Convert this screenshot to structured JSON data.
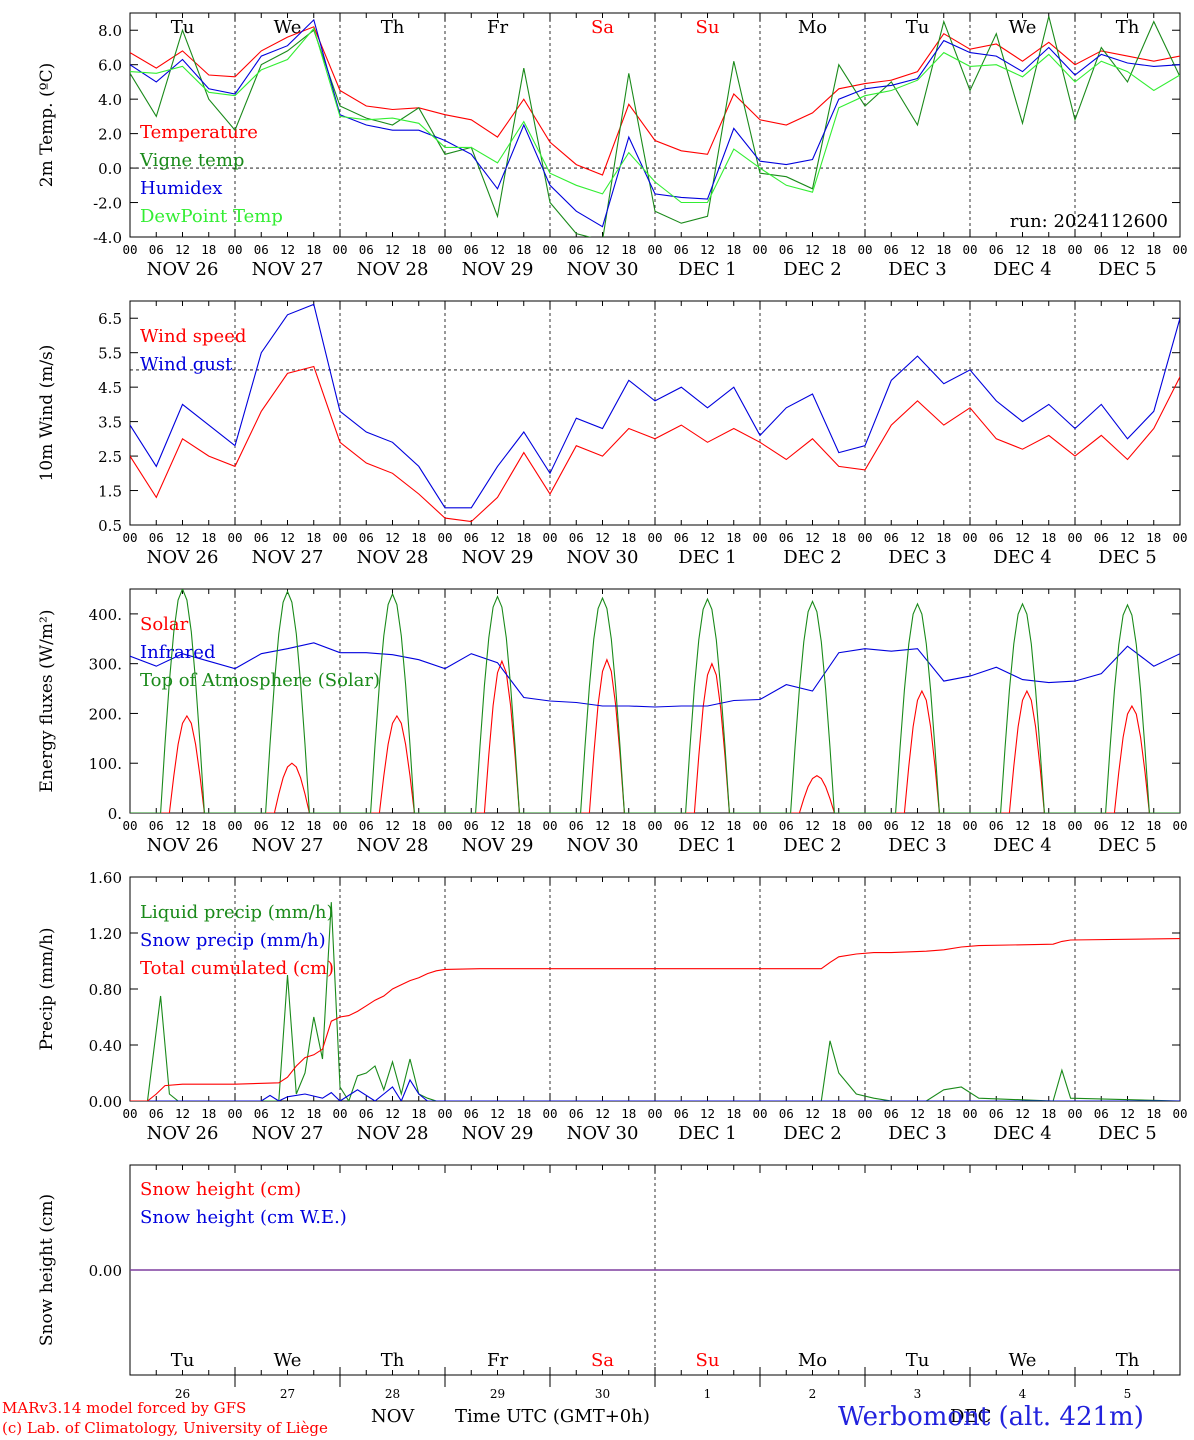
{
  "colors": {
    "red": "#ff0000",
    "green": "#1a8a1a",
    "blue": "#0000dd",
    "lightgreen": "#33ee33",
    "purple": "#7f3f9f"
  },
  "days_of_week": [
    {
      "label": "Tu",
      "color": "#000000"
    },
    {
      "label": "We",
      "color": "#000000"
    },
    {
      "label": "Th",
      "color": "#000000"
    },
    {
      "label": "Fr",
      "color": "#000000"
    },
    {
      "label": "Sa",
      "color": "#ff0000"
    },
    {
      "label": "Su",
      "color": "#ff0000"
    },
    {
      "label": "Mo",
      "color": "#000000"
    },
    {
      "label": "Tu",
      "color": "#000000"
    },
    {
      "label": "We",
      "color": "#000000"
    },
    {
      "label": "Th",
      "color": "#000000"
    }
  ],
  "date_labels": [
    "NOV 26",
    "NOV 27",
    "NOV 28",
    "NOV 29",
    "NOV 30",
    "DEC  1",
    "DEC  2",
    "DEC  3",
    "DEC  4",
    "DEC  5"
  ],
  "hour_labels": [
    "00",
    "06",
    "12",
    "18"
  ],
  "day_numbers": [
    "26",
    "27",
    "28",
    "29",
    "30",
    "1",
    "2",
    "3",
    "4",
    "5"
  ],
  "footer": {
    "model_line1": "MARv3.14 model forced by GFS",
    "model_line2": "(c) Lab. of Climatology, University of Liège",
    "month_nov": "NOV",
    "month_dec": "DEC",
    "time_axis": "Time UTC (GMT+0h)",
    "station": "Werbomont (alt. 421m)"
  },
  "chart_data": [
    {
      "id": "temperature",
      "type": "line",
      "ylabel": "2m Temp. (ºC)",
      "ylim": [
        -4,
        9
      ],
      "yticks": [
        "-4.0",
        "-2.0",
        "0.0",
        "2.0",
        "4.0",
        "6.0",
        "8.0"
      ],
      "ytick_values": [
        -4,
        -2,
        0,
        2,
        4,
        6,
        8
      ],
      "reference_line": 0,
      "annotation": "run: 2024112600",
      "x_unit": "hours since 2024-11-26 00 UTC",
      "series": [
        {
          "name": "Temperature",
          "color": "#ff0000",
          "x": [
            0,
            6,
            12,
            18,
            24,
            30,
            36,
            42,
            48,
            54,
            60,
            66,
            72,
            78,
            84,
            90,
            96,
            102,
            108,
            114,
            120,
            126,
            132,
            138,
            144,
            150,
            156,
            162,
            168,
            174,
            180,
            186,
            192,
            198,
            204,
            210,
            216,
            222,
            228,
            234,
            240
          ],
          "y": [
            6.7,
            5.8,
            6.8,
            5.4,
            5.3,
            6.8,
            7.6,
            8.2,
            4.5,
            3.6,
            3.4,
            3.5,
            3.1,
            2.8,
            1.8,
            4.0,
            1.5,
            0.2,
            -0.4,
            3.7,
            1.6,
            1.0,
            0.8,
            4.3,
            2.8,
            2.5,
            3.2,
            4.6,
            4.9,
            5.1,
            5.6,
            7.8,
            6.9,
            7.2,
            6.2,
            7.3,
            6.0,
            6.8,
            6.5,
            6.2,
            6.5
          ]
        },
        {
          "name": "Vigne temp",
          "color": "#1a8a1a",
          "x": [
            0,
            6,
            12,
            18,
            24,
            30,
            36,
            42,
            48,
            54,
            60,
            66,
            72,
            78,
            84,
            90,
            96,
            102,
            108,
            114,
            120,
            126,
            132,
            138,
            144,
            150,
            156,
            162,
            168,
            174,
            180,
            186,
            192,
            198,
            204,
            210,
            216,
            222,
            228,
            234,
            240
          ],
          "y": [
            5.5,
            3.0,
            8.0,
            4.0,
            2.2,
            6.0,
            6.8,
            8.0,
            3.6,
            2.9,
            2.5,
            3.5,
            0.8,
            1.2,
            -2.8,
            5.8,
            -2.0,
            -3.8,
            -4.2,
            5.5,
            -2.5,
            -3.2,
            -2.8,
            6.2,
            -0.3,
            -0.5,
            -1.2,
            6.0,
            3.6,
            5.0,
            2.5,
            8.5,
            4.5,
            7.8,
            2.6,
            8.8,
            2.8,
            7.0,
            5.0,
            8.5,
            5.3
          ]
        },
        {
          "name": "Humidex",
          "color": "#0000dd",
          "x": [
            0,
            6,
            12,
            18,
            24,
            30,
            36,
            42,
            48,
            54,
            60,
            66,
            72,
            78,
            84,
            90,
            96,
            102,
            108,
            114,
            120,
            126,
            132,
            138,
            144,
            150,
            156,
            162,
            168,
            174,
            180,
            186,
            192,
            198,
            204,
            210,
            216,
            222,
            228,
            234,
            240
          ],
          "y": [
            6.0,
            5.0,
            6.3,
            4.6,
            4.3,
            6.5,
            7.1,
            8.6,
            3.1,
            2.5,
            2.2,
            2.2,
            1.6,
            0.8,
            -1.2,
            2.5,
            -1.0,
            -2.5,
            -3.4,
            1.8,
            -1.5,
            -1.7,
            -1.8,
            2.3,
            0.4,
            0.2,
            0.5,
            4.0,
            4.6,
            4.8,
            5.2,
            7.4,
            6.7,
            6.5,
            5.6,
            7.0,
            5.4,
            6.6,
            6.1,
            5.9,
            6.0
          ]
        },
        {
          "name": "DewPoint Temp",
          "color": "#33ee33",
          "x": [
            0,
            6,
            12,
            18,
            24,
            30,
            36,
            42,
            48,
            54,
            60,
            66,
            72,
            78,
            84,
            90,
            96,
            102,
            108,
            114,
            120,
            126,
            132,
            138,
            144,
            150,
            156,
            162,
            168,
            174,
            180,
            186,
            192,
            198,
            204,
            210,
            216,
            222,
            228,
            234,
            240
          ],
          "y": [
            5.6,
            5.5,
            5.9,
            4.4,
            4.2,
            5.7,
            6.3,
            8.1,
            3.0,
            2.8,
            2.9,
            2.6,
            1.2,
            1.2,
            0.3,
            2.7,
            -0.3,
            -1.0,
            -1.5,
            0.9,
            -0.8,
            -2.0,
            -2.0,
            1.1,
            0.0,
            -1.0,
            -1.4,
            3.5,
            4.2,
            4.5,
            5.1,
            6.7,
            5.9,
            6.0,
            5.3,
            6.6,
            5.0,
            6.2,
            5.6,
            4.5,
            5.4
          ]
        }
      ]
    },
    {
      "id": "wind",
      "type": "line",
      "ylabel": "10m Wind (m/s)",
      "ylim": [
        0.5,
        7.0
      ],
      "yticks": [
        "0.5",
        "1.5",
        "2.5",
        "3.5",
        "4.5",
        "5.5",
        "6.5"
      ],
      "ytick_values": [
        0.5,
        1.5,
        2.5,
        3.5,
        4.5,
        5.5,
        6.5
      ],
      "reference_line": 5.0,
      "x_unit": "hours since 2024-11-26 00 UTC",
      "series": [
        {
          "name": "Wind speed",
          "color": "#ff0000",
          "x": [
            0,
            6,
            12,
            18,
            24,
            30,
            36,
            42,
            48,
            54,
            60,
            66,
            72,
            78,
            84,
            90,
            96,
            102,
            108,
            114,
            120,
            126,
            132,
            138,
            144,
            150,
            156,
            162,
            168,
            174,
            180,
            186,
            192,
            198,
            204,
            210,
            216,
            222,
            228,
            234,
            240
          ],
          "y": [
            2.5,
            1.3,
            3.0,
            2.5,
            2.2,
            3.8,
            4.9,
            5.1,
            2.9,
            2.3,
            2.0,
            1.4,
            0.7,
            0.6,
            1.3,
            2.6,
            1.4,
            2.8,
            2.5,
            3.3,
            3.0,
            3.4,
            2.9,
            3.3,
            2.9,
            2.4,
            3.0,
            2.2,
            2.1,
            3.4,
            4.1,
            3.4,
            3.9,
            3.0,
            2.7,
            3.1,
            2.5,
            3.1,
            2.4,
            3.3,
            4.8
          ]
        },
        {
          "name": "Wind gust",
          "color": "#0000dd",
          "x": [
            0,
            6,
            12,
            18,
            24,
            30,
            36,
            42,
            48,
            54,
            60,
            66,
            72,
            78,
            84,
            90,
            96,
            102,
            108,
            114,
            120,
            126,
            132,
            138,
            144,
            150,
            156,
            162,
            168,
            174,
            180,
            186,
            192,
            198,
            204,
            210,
            216,
            222,
            228,
            234,
            240
          ],
          "y": [
            3.4,
            2.2,
            4.0,
            3.4,
            2.8,
            5.5,
            6.6,
            6.9,
            3.8,
            3.2,
            2.9,
            2.2,
            1.0,
            1.0,
            2.2,
            3.2,
            2.0,
            3.6,
            3.3,
            4.7,
            4.1,
            4.5,
            3.9,
            4.5,
            3.1,
            3.9,
            4.3,
            2.6,
            2.8,
            4.7,
            5.4,
            4.6,
            5.0,
            4.1,
            3.5,
            4.0,
            3.3,
            4.0,
            3.0,
            3.8,
            6.5
          ]
        }
      ]
    },
    {
      "id": "energy",
      "type": "line",
      "ylabel": "Energy fluxes (W/m²)",
      "ylim": [
        0,
        450
      ],
      "yticks": [
        "0.",
        "100.",
        "200.",
        "300.",
        "400."
      ],
      "ytick_values": [
        0,
        100,
        200,
        300,
        400
      ],
      "x_unit": "hours since 2024-11-26 00 UTC",
      "day_peaks": {
        "solar": [
          195,
          100,
          195,
          305,
          308,
          300,
          75,
          245,
          245,
          215
        ],
        "toa": [
          450,
          445,
          440,
          435,
          432,
          430,
          425,
          420,
          420,
          418
        ]
      },
      "series": [
        {
          "name": "Solar",
          "color": "#ff0000"
        },
        {
          "name": "Infrared",
          "color": "#0000dd",
          "x": [
            0,
            6,
            12,
            18,
            24,
            30,
            36,
            42,
            48,
            54,
            60,
            66,
            72,
            78,
            84,
            90,
            96,
            102,
            108,
            114,
            120,
            126,
            132,
            138,
            144,
            150,
            156,
            162,
            168,
            174,
            180,
            186,
            192,
            198,
            204,
            210,
            216,
            222,
            228,
            234,
            240
          ],
          "y": [
            315,
            295,
            320,
            305,
            290,
            320,
            330,
            342,
            322,
            322,
            318,
            308,
            290,
            320,
            302,
            232,
            225,
            222,
            215,
            215,
            213,
            215,
            215,
            226,
            228,
            258,
            245,
            322,
            330,
            325,
            330,
            265,
            275,
            293,
            268,
            262,
            265,
            280,
            335,
            295,
            320
          ]
        },
        {
          "name": "Top of Atmosphere (Solar)",
          "color": "#1a8a1a"
        }
      ]
    },
    {
      "id": "precip",
      "type": "line",
      "ylabel": "Precip (mm/h)",
      "ylim": [
        0,
        1.6
      ],
      "yticks": [
        "0.00",
        "0.40",
        "0.80",
        "1.20",
        "1.60"
      ],
      "ytick_values": [
        0,
        0.4,
        0.8,
        1.2,
        1.6
      ],
      "x_unit": "hours since 2024-11-26 00 UTC",
      "series": [
        {
          "name": "Liquid precip (mm/h)",
          "color": "#1a8a1a",
          "x": [
            0,
            4,
            7,
            9,
            11,
            24,
            34,
            36,
            38,
            40,
            42,
            44,
            46,
            48,
            50,
            52,
            54,
            56,
            58,
            60,
            62,
            64,
            66,
            68,
            70,
            72,
            96,
            150,
            158,
            160,
            162,
            166,
            170,
            174,
            182,
            186,
            190,
            194,
            211,
            213,
            215,
            240
          ],
          "y": [
            0,
            0,
            0.75,
            0.05,
            0,
            0,
            0,
            0.9,
            0.05,
            0.2,
            0.6,
            0.3,
            1.42,
            0.1,
            0,
            0.18,
            0.2,
            0.25,
            0.08,
            0.28,
            0.05,
            0.3,
            0.05,
            0.02,
            0,
            0,
            0,
            0,
            0,
            0.43,
            0.2,
            0.05,
            0.02,
            0,
            0,
            0.08,
            0.1,
            0.02,
            0,
            0.22,
            0.02,
            0
          ]
        },
        {
          "name": "Snow precip (mm/h)",
          "color": "#0000dd",
          "x": [
            0,
            30,
            32,
            34,
            36,
            40,
            44,
            46,
            48,
            52,
            56,
            58,
            60,
            62,
            64,
            66,
            68,
            72,
            240
          ],
          "y": [
            0,
            0,
            0.04,
            0,
            0.03,
            0.05,
            0.02,
            0.06,
            0,
            0.08,
            0,
            0.05,
            0.1,
            0,
            0.15,
            0.05,
            0,
            0,
            0
          ]
        },
        {
          "name": "Total cumulated (cm)",
          "color": "#ff0000",
          "x": [
            0,
            4,
            6,
            8,
            12,
            24,
            34,
            36,
            38,
            40,
            42,
            44,
            46,
            48,
            50,
            52,
            54,
            56,
            58,
            60,
            62,
            64,
            66,
            68,
            70,
            72,
            80,
            96,
            120,
            150,
            158,
            160,
            162,
            166,
            170,
            174,
            182,
            186,
            190,
            194,
            211,
            213,
            215,
            240
          ],
          "y": [
            0,
            0,
            0.05,
            0.11,
            0.12,
            0.12,
            0.13,
            0.17,
            0.25,
            0.31,
            0.33,
            0.37,
            0.57,
            0.6,
            0.61,
            0.64,
            0.68,
            0.72,
            0.75,
            0.8,
            0.83,
            0.86,
            0.88,
            0.91,
            0.93,
            0.94,
            0.945,
            0.945,
            0.945,
            0.945,
            0.945,
            0.99,
            1.03,
            1.05,
            1.06,
            1.06,
            1.07,
            1.08,
            1.1,
            1.11,
            1.12,
            1.14,
            1.15,
            1.16
          ]
        }
      ]
    },
    {
      "id": "snow",
      "type": "line",
      "ylabel": "Snow height (cm)",
      "ylim": [
        -1,
        1
      ],
      "yticks": [
        "0.00"
      ],
      "ytick_values": [
        0
      ],
      "x_unit": "hours since 2024-11-26 00 UTC",
      "series": [
        {
          "name": "Snow height (cm)",
          "color": "#ff0000",
          "x": [
            0,
            240
          ],
          "y": [
            0,
            0
          ]
        },
        {
          "name": "Snow height (cm W.E.)",
          "color": "#0000dd",
          "x": [
            0,
            240
          ],
          "y": [
            0,
            0
          ]
        }
      ]
    }
  ]
}
